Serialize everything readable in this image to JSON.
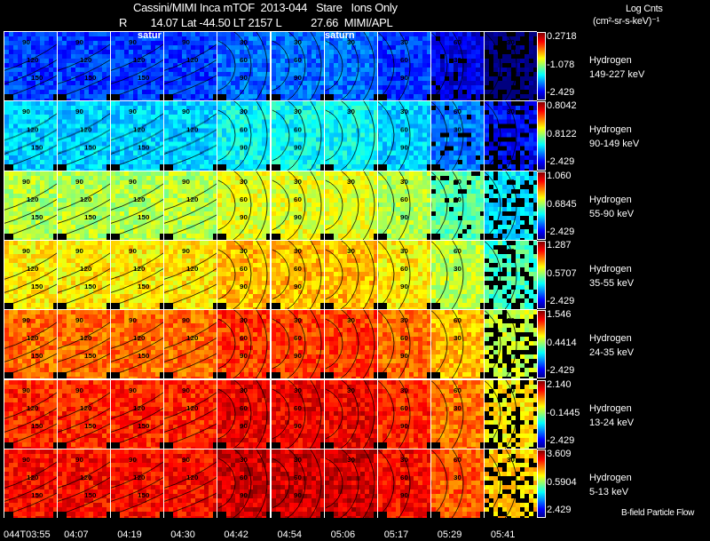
{
  "header": {
    "title": "Cassini/MIMI Inca mTOF  2013-044   Stare   Ions Only",
    "orbit_line": "R        14.07 Lat -44.50 LT 2157 L          27.66  MIMI/APL",
    "units_1": "Log Cnts",
    "units_2": "(cm²-sr-s-keV)⁻¹"
  },
  "saturn_labels": [
    "satur",
    "saturn"
  ],
  "footer_note": "B-field Particle Flow",
  "chart_data": {
    "type": "heatmap",
    "title": "Cassini/MIMI Inca mTOF 2013-044 Stare Ions Only",
    "times": [
      "044T03:55",
      "04:07",
      "04:19",
      "04:30",
      "04:42",
      "04:54",
      "05:06",
      "05:17",
      "05:29",
      "05:41"
    ],
    "rows": [
      {
        "species": "Hydrogen",
        "energy": "149-227 keV",
        "cmax": "0.2718",
        "cmid": "-1.078",
        "cmin": "-2.429",
        "level": 0.18
      },
      {
        "species": "Hydrogen",
        "energy": "90-149 keV",
        "cmax": "0.8042",
        "cmid": "0.8122",
        "cmin": "-2.429",
        "level": 0.33
      },
      {
        "species": "Hydrogen",
        "energy": "55-90 keV",
        "cmax": "1.060",
        "cmid": "0.6845",
        "cmin": "-2.429",
        "level": 0.55
      },
      {
        "species": "Hydrogen",
        "energy": "35-55 keV",
        "cmax": "1.287",
        "cmid": "0.5707",
        "cmin": "-2.429",
        "level": 0.64
      },
      {
        "species": "Hydrogen",
        "energy": "24-35 keV",
        "cmax": "1.546",
        "cmid": "0.4414",
        "cmin": "-2.429",
        "level": 0.77
      },
      {
        "species": "Hydrogen",
        "energy": "13-24 keV",
        "cmax": "2.140",
        "cmid": "-0.1445",
        "cmin": "-2.429",
        "level": 0.84
      },
      {
        "species": "Hydrogen",
        "energy": "5-13 keV",
        "cmax": "3.609",
        "cmid": "0.5904",
        "cmin": "2.429",
        "level": 0.87
      }
    ],
    "contour_labels": [
      [
        "90",
        "120",
        "150"
      ],
      [
        "90",
        "120",
        "150"
      ],
      [
        "90",
        "120",
        "150"
      ],
      [
        "90",
        "120"
      ],
      [
        "30",
        "60",
        "90"
      ],
      [
        "30",
        "60",
        "90"
      ],
      [
        "30"
      ],
      [
        "30",
        "60",
        "90"
      ],
      [
        "60",
        "30"
      ],
      [
        "30"
      ]
    ]
  }
}
